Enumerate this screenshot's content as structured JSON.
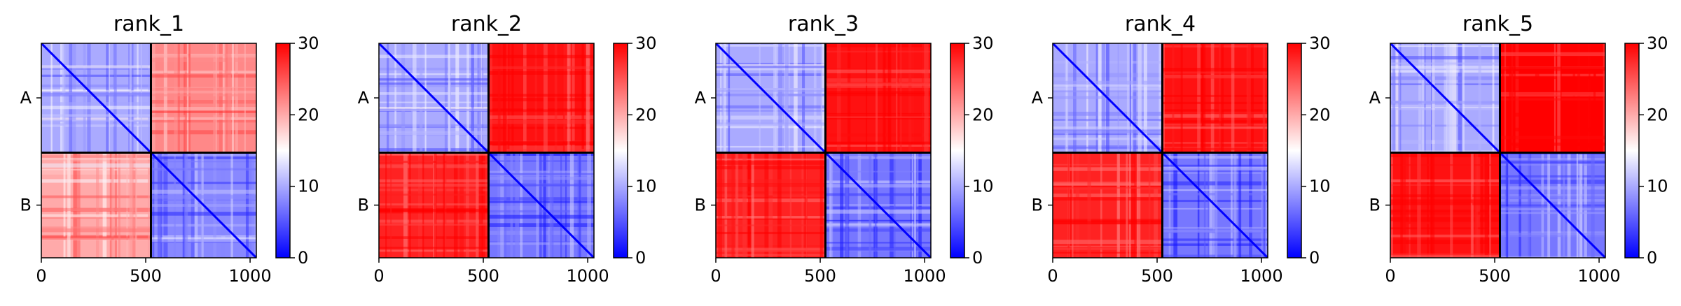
{
  "chart_data": {
    "type": "heatmap",
    "xlim": [
      0,
      1030
    ],
    "ylim": [
      1030,
      0
    ],
    "chain_boundary": 525,
    "x_ticks": [
      0,
      500,
      1000
    ],
    "y_ticks": [
      {
        "label": "A",
        "value": 262
      },
      {
        "label": "B",
        "value": 777
      }
    ],
    "colorbar": {
      "min": 0,
      "max": 30,
      "ticks": [
        0,
        10,
        20,
        30
      ],
      "colors": {
        "low": "#0000ff",
        "mid": "#ffffff",
        "high": "#ff0000"
      }
    },
    "panels": [
      {
        "title": "rank_1",
        "blocks": {
          "AA": 10,
          "AB": 22,
          "BA": 20,
          "BB": 8
        }
      },
      {
        "title": "rank_2",
        "blocks": {
          "AA": 10,
          "AB": 29,
          "BA": 28,
          "BB": 7
        }
      },
      {
        "title": "rank_3",
        "blocks": {
          "AA": 10,
          "AB": 29,
          "BA": 28,
          "BB": 7
        }
      },
      {
        "title": "rank_4",
        "blocks": {
          "AA": 10,
          "AB": 29,
          "BA": 28,
          "BB": 7
        }
      },
      {
        "title": "rank_5",
        "blocks": {
          "AA": 10,
          "AB": 30,
          "BA": 29,
          "BB": 7
        }
      }
    ]
  }
}
